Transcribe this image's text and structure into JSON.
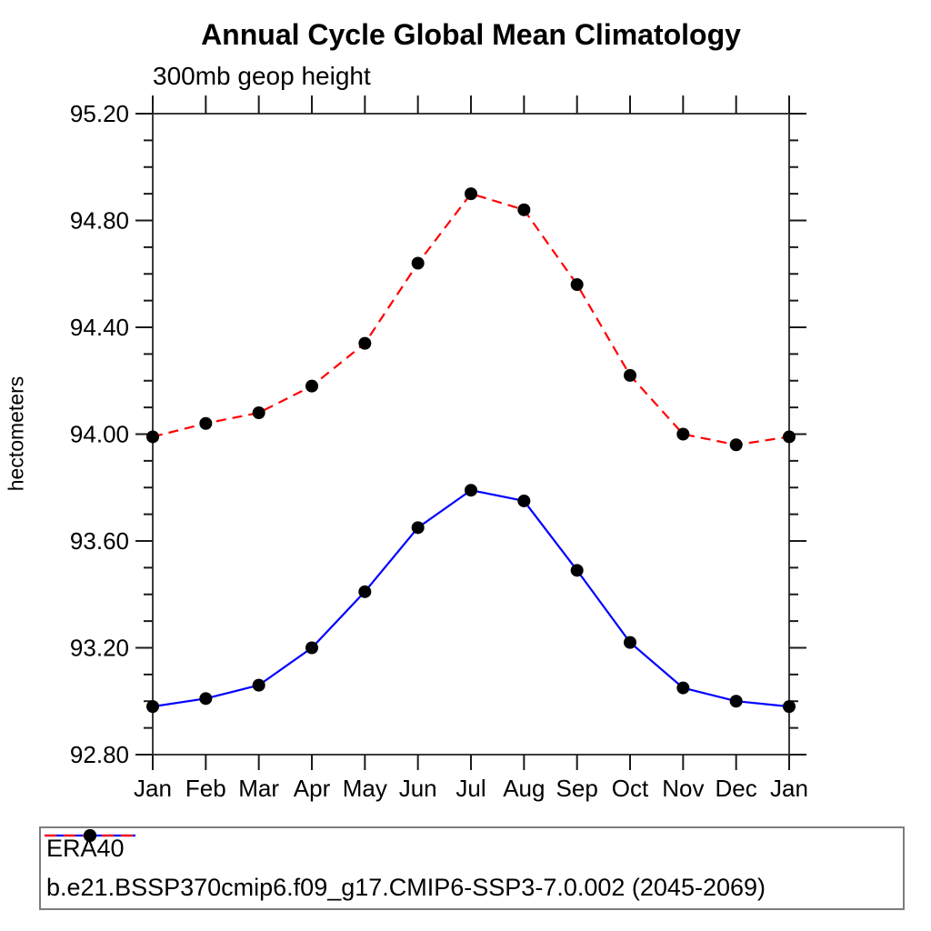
{
  "chart_data": {
    "type": "line",
    "title": "Annual Cycle Global Mean Climatology",
    "subtitle": "300mb geop height",
    "ylabel": "hectometers",
    "xlabel": "",
    "categories": [
      "Jan",
      "Feb",
      "Mar",
      "Apr",
      "May",
      "Jun",
      "Jul",
      "Aug",
      "Sep",
      "Oct",
      "Nov",
      "Dec",
      "Jan"
    ],
    "ylim": [
      92.8,
      95.2
    ],
    "ytick_major_step": 0.4,
    "ytick_minor_step": 0.1,
    "ytick_label_format": "2-decimals",
    "grid": false,
    "legend_position": "bottom-left-box",
    "series": [
      {
        "name": "ERA40",
        "color": "#0000ff",
        "line_style": "solid",
        "marker": "filled-black-circle",
        "values": [
          92.98,
          93.01,
          93.06,
          93.2,
          93.41,
          93.65,
          93.79,
          93.75,
          93.49,
          93.22,
          93.05,
          93.0,
          92.98
        ]
      },
      {
        "name": "b.e21.BSSP370cmip6.f09_g17.CMIP6-SSP3-7.0.002 (2045-2069)",
        "color": "#ff0000",
        "line_style": "dashed",
        "marker": "filled-black-circle",
        "values": [
          93.99,
          94.04,
          94.08,
          94.18,
          94.34,
          94.64,
          94.9,
          94.84,
          94.56,
          94.22,
          94.0,
          93.96,
          93.99
        ]
      }
    ]
  },
  "style": {
    "frame_color": "#3c3c3c",
    "tick_color": "#1a1a1a",
    "marker_color": "#000000",
    "background": "#ffffff"
  }
}
